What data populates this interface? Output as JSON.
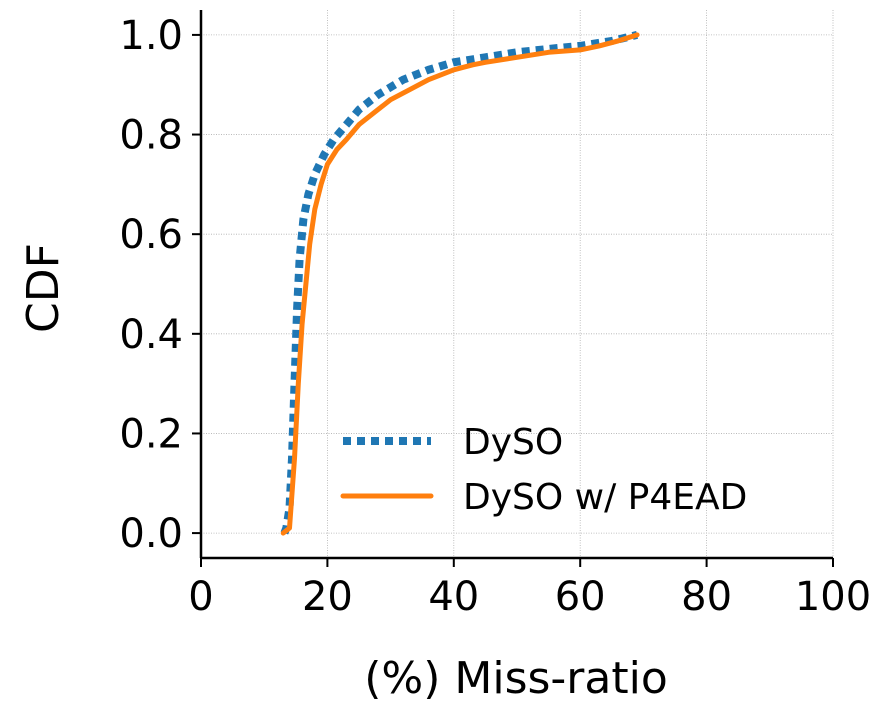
{
  "chart_data": {
    "type": "line",
    "xlabel": "(%) Miss-ratio",
    "ylabel": "CDF",
    "xlim": [
      0,
      100
    ],
    "ylim": [
      -0.05,
      1.05
    ],
    "xticks": [
      0,
      20,
      40,
      60,
      80,
      100
    ],
    "xtick_labels": [
      "0",
      "20",
      "40",
      "60",
      "80",
      "100"
    ],
    "yticks": [
      0.0,
      0.2,
      0.4,
      0.6,
      0.8,
      1.0
    ],
    "ytick_labels": [
      "0.0",
      "0.2",
      "0.4",
      "0.6",
      "0.8",
      "1.0"
    ],
    "grid": true,
    "legend_position": "lower-right",
    "series": [
      {
        "name": "DySΟ",
        "color": "#1f77b4",
        "style": "dotted",
        "x": [
          13.2,
          13.5,
          14.0,
          14.4,
          14.8,
          15.2,
          15.6,
          16.2,
          17.0,
          18.0,
          19.5,
          21.0,
          23.0,
          25.0,
          28.0,
          32.0,
          36.0,
          40.0,
          45.0,
          50.0,
          55.0,
          60.0,
          65.0,
          69.0
        ],
        "y": [
          0.0,
          0.01,
          0.05,
          0.15,
          0.3,
          0.45,
          0.55,
          0.63,
          0.68,
          0.72,
          0.76,
          0.79,
          0.82,
          0.85,
          0.88,
          0.91,
          0.93,
          0.945,
          0.955,
          0.965,
          0.972,
          0.978,
          0.988,
          1.0
        ]
      },
      {
        "name": "DySΟ w/ P4EAD",
        "color": "#ff7f0e",
        "style": "solid",
        "x": [
          13.0,
          14.0,
          14.8,
          15.4,
          16.0,
          16.6,
          17.2,
          18.0,
          19.0,
          20.0,
          21.5,
          23.0,
          25.0,
          28.0,
          30.0,
          33.0,
          36.0,
          40.0,
          43.0,
          45.0,
          50.0,
          55.0,
          60.0,
          63.0,
          66.0,
          69.0
        ],
        "y": [
          0.0,
          0.01,
          0.15,
          0.3,
          0.42,
          0.5,
          0.58,
          0.65,
          0.7,
          0.74,
          0.77,
          0.79,
          0.82,
          0.85,
          0.87,
          0.89,
          0.91,
          0.93,
          0.94,
          0.945,
          0.955,
          0.965,
          0.97,
          0.978,
          0.988,
          1.0
        ]
      }
    ]
  }
}
